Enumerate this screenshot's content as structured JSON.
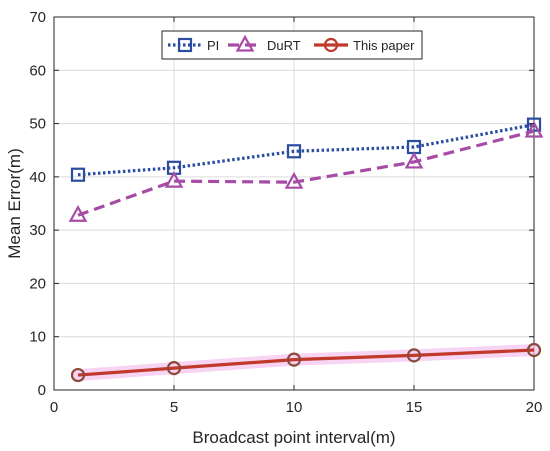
{
  "chart_data": {
    "type": "line",
    "xlabel": "Broadcast point interval(m)",
    "ylabel": "Mean Error(m)",
    "xlim": [
      0,
      20
    ],
    "ylim": [
      0,
      70
    ],
    "xticks": [
      "0",
      "5",
      "10",
      "15",
      "20"
    ],
    "yticks": [
      "0",
      "10",
      "20",
      "30",
      "40",
      "50",
      "60",
      "70"
    ],
    "grid": true,
    "legend_position": "top-center",
    "x": [
      1,
      5,
      10,
      15,
      20
    ],
    "series": [
      {
        "name": "PI",
        "values": [
          40.4,
          41.7,
          44.8,
          45.6,
          49.8
        ],
        "color": "#2b4da0",
        "line_style": "dotted",
        "marker": "square"
      },
      {
        "name": "DuRT",
        "values": [
          32.8,
          39.2,
          39.0,
          42.8,
          48.6
        ],
        "color": "#a64ca6",
        "line_style": "dashed",
        "marker": "triangle"
      },
      {
        "name": "This paper",
        "values": [
          2.8,
          4.1,
          5.7,
          6.5,
          7.5
        ],
        "color": "#c0392b",
        "line_style": "solid",
        "marker": "circle"
      }
    ]
  }
}
